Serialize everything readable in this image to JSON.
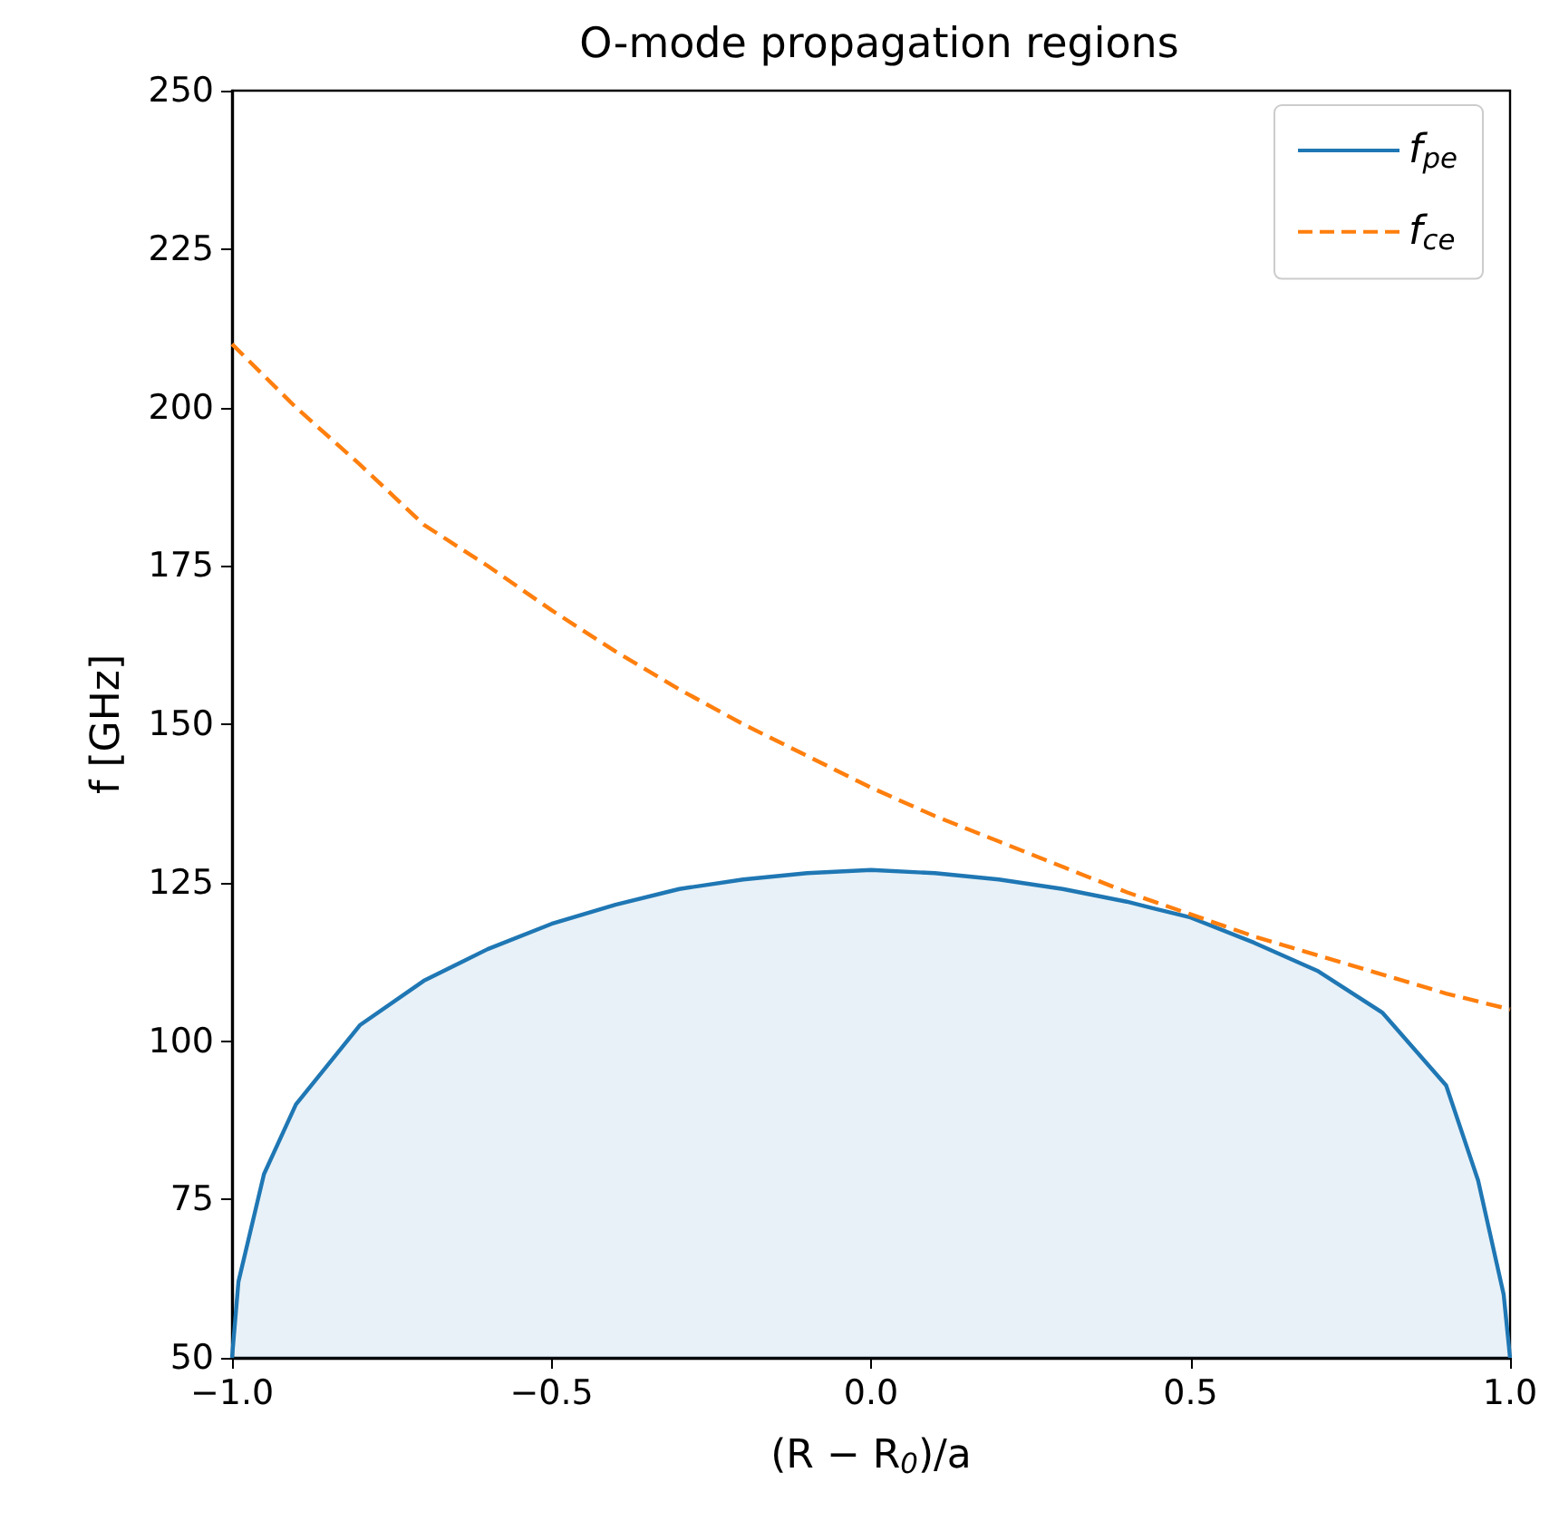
{
  "chart_data": {
    "type": "line",
    "title": "O-mode propagation regions",
    "xlabel": "(R − R$_{0}$)/a",
    "ylabel": "f [GHz]",
    "xlim": [
      -1,
      1
    ],
    "xticks": [
      {
        "value": -1,
        "label": "−1.0"
      },
      {
        "value": -0.5,
        "label": "−0.5"
      },
      {
        "value": 0,
        "label": "0.0"
      },
      {
        "value": 0.5,
        "label": "0.5"
      },
      {
        "value": 1,
        "label": "1.0"
      }
    ],
    "ylim": [
      50,
      250
    ],
    "yticks": [
      50,
      75,
      100,
      125,
      150,
      175,
      200,
      225,
      250
    ],
    "grid": false,
    "legend": "top right",
    "series": [
      {
        "name": "f$_{pe}$",
        "type": "area",
        "color": "#1f77b4",
        "line_style": "solid",
        "x": [
          -1,
          -0.99,
          -0.95,
          -0.9,
          -0.8,
          -0.7,
          -0.6,
          -0.5,
          -0.4,
          -0.3,
          -0.2,
          -0.1,
          0,
          0.1,
          0.2,
          0.3,
          0.4,
          0.5,
          0.6,
          0.7,
          0.8,
          0.9,
          0.95,
          0.99,
          1
        ],
        "values": [
          50,
          62,
          79,
          90,
          102.5,
          109.5,
          114.5,
          118.5,
          121.5,
          124,
          125.5,
          126.5,
          127,
          126.5,
          125.5,
          124,
          122,
          119.5,
          115.5,
          111,
          104.5,
          93,
          78,
          60,
          50
        ]
      },
      {
        "name": "f$_{ce}$",
        "color": "#ff7f0e",
        "line_style": "dashed",
        "x": [
          -1,
          -0.9,
          -0.8,
          -0.7,
          -0.6,
          -0.5,
          -0.4,
          -0.3,
          -0.2,
          -0.1,
          0,
          0.1,
          0.2,
          0.3,
          0.4,
          0.5,
          0.6,
          0.7,
          0.8,
          0.9,
          1
        ],
        "values": [
          210,
          200,
          191,
          181.5,
          175,
          168,
          161.5,
          155.5,
          150,
          145,
          140,
          135.5,
          131.5,
          127.5,
          123.5,
          120,
          116.5,
          113.5,
          110.5,
          107.5,
          105
        ]
      }
    ]
  }
}
